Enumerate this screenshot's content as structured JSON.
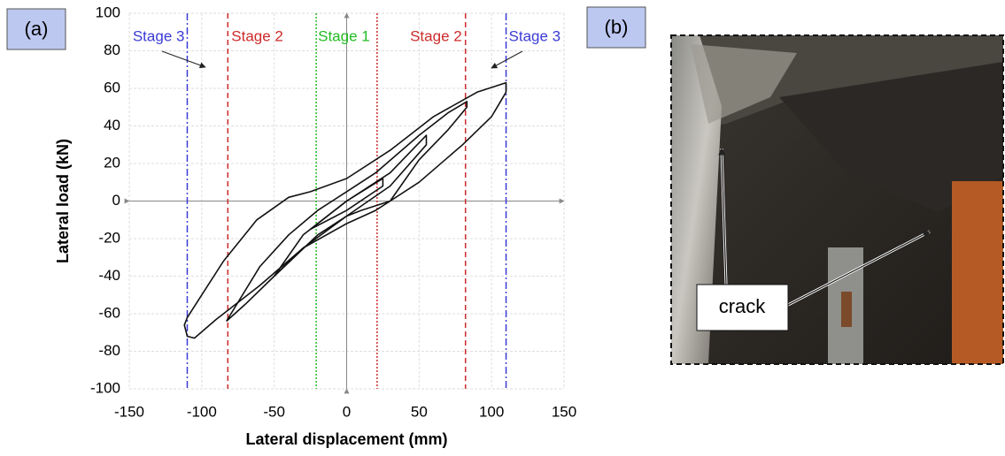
{
  "panels": {
    "a": "(a)",
    "b": "(b)"
  },
  "photo": {
    "annotation": "crack"
  },
  "chart_data": {
    "type": "line",
    "xlabel": "Lateral displacement (mm)",
    "ylabel": "Lateral load (kN)",
    "xlim": [
      -150,
      150
    ],
    "ylim": [
      -100,
      100
    ],
    "xticks": [
      -150,
      -100,
      -50,
      0,
      50,
      100,
      150
    ],
    "yticks": [
      -100,
      -80,
      -60,
      -40,
      -20,
      0,
      20,
      40,
      60,
      80,
      100
    ],
    "grid": true,
    "color": "#111111",
    "stage_lines": [
      {
        "x": -110,
        "label": "Stage 3",
        "color": "#3b3bd6",
        "dash": "dashdot"
      },
      {
        "x": -82,
        "label": "Stage 2",
        "color": "#cc2a2a",
        "dash": "dashed"
      },
      {
        "x": -21,
        "label": "Stage 1",
        "color": "#22bb22",
        "dash": "dotted"
      },
      {
        "x": 21,
        "label": "Stage 2",
        "color": "#cc2a2a",
        "dash": "dotted"
      },
      {
        "x": 82,
        "label": "Stage 2",
        "color": "#cc2a2a",
        "dash": "dashed"
      },
      {
        "x": 110,
        "label": "Stage 3",
        "color": "#3b3bd6",
        "dash": "dashdot"
      }
    ],
    "stage_labels": [
      {
        "text": "Stage 3",
        "color": "#3b3bd6"
      },
      {
        "text": "Stage 2",
        "color": "#cc2a2a"
      },
      {
        "text": "Stage 1",
        "color": "#22bb22"
      },
      {
        "text": "Stage 2",
        "color": "#cc2a2a"
      },
      {
        "text": "Stage 3",
        "color": "#3b3bd6"
      }
    ],
    "loops": [
      {
        "x": [
          -110,
          -100,
          -85,
          -62,
          -40,
          -25,
          0,
          30,
          60,
          90,
          110,
          110,
          100,
          80,
          50,
          30,
          20,
          0,
          -30,
          -60,
          -90,
          -105,
          -110,
          -112,
          -110
        ],
        "y": [
          -62,
          -50,
          -32,
          -10,
          2,
          5,
          12,
          27,
          45,
          58,
          63,
          58,
          45,
          30,
          10,
          0,
          -5,
          -12,
          -25,
          -45,
          -63,
          -73,
          -72,
          -66,
          -62
        ]
      },
      {
        "x": [
          -83,
          -60,
          -40,
          -20,
          0,
          20,
          50,
          70,
          83,
          83,
          70,
          50,
          30,
          10,
          0,
          -20,
          -50,
          -70,
          -83
        ],
        "y": [
          -64,
          -35,
          -18,
          -5,
          5,
          15,
          35,
          47,
          53,
          50,
          38,
          22,
          0,
          -5,
          -8,
          -18,
          -40,
          -55,
          -64
        ]
      },
      {
        "x": [
          -50,
          -30,
          0,
          30,
          55,
          55,
          30,
          0,
          -30,
          -50
        ],
        "y": [
          -40,
          -18,
          0,
          15,
          35,
          30,
          8,
          -8,
          -25,
          -40
        ]
      },
      {
        "x": [
          -25,
          0,
          25,
          25,
          0,
          -25
        ],
        "y": [
          -15,
          0,
          12,
          8,
          -5,
          -15
        ]
      }
    ]
  }
}
